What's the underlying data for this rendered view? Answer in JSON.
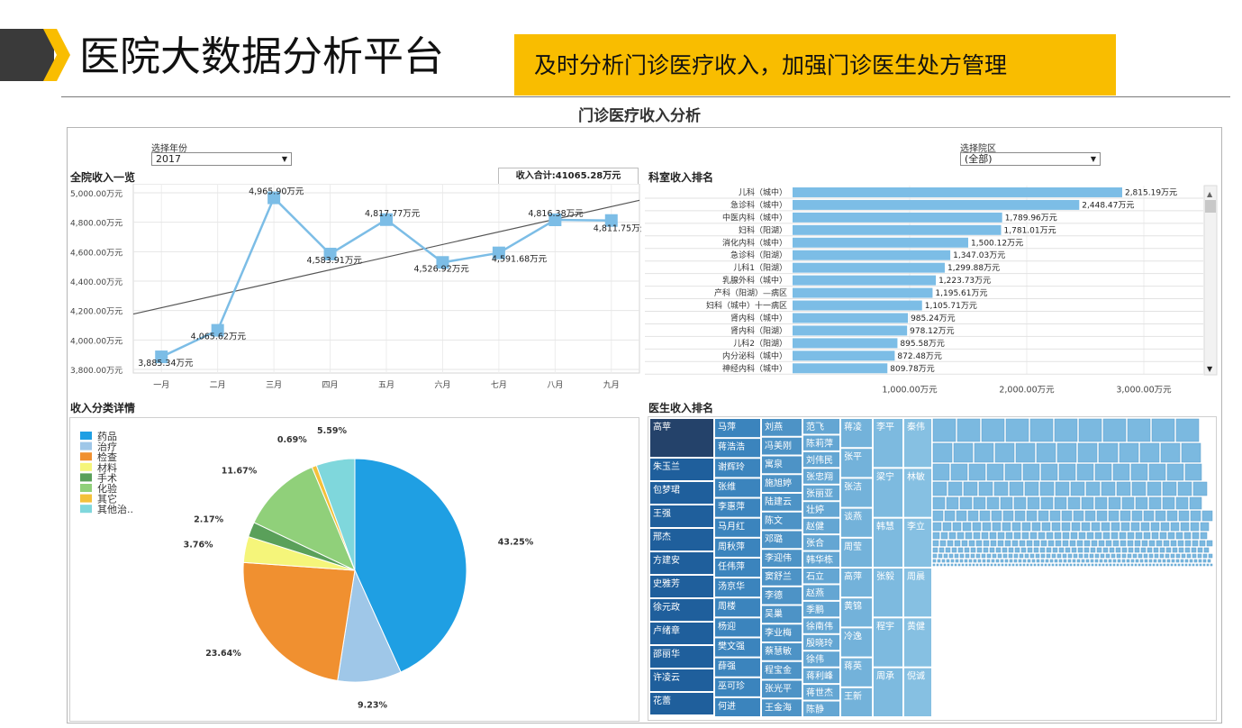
{
  "header": {
    "title": "医院大数据分析平台",
    "banner": "及时分析门诊医疗收入，加强门诊医生处方管理",
    "bar_color": "#3a3a3a",
    "chevron_color": "#f9bd00",
    "banner_color": "#f9bd00"
  },
  "dashboard": {
    "title": "门诊医疗收入分析",
    "year_filter": {
      "label": "选择年份",
      "value": "2017"
    },
    "district_filter": {
      "label": "选择院区",
      "value": "(全部)"
    },
    "total_label": "收入合计:41065.28万元",
    "sections": {
      "hospital": "全院收入一览",
      "dept": "科室收入排名",
      "category": "收入分类详情",
      "doctor": "医生收入排名"
    },
    "doctor_names": [
      [
        "高苹",
        "朱玉兰",
        "包梦珺",
        "王强",
        "邢杰",
        "方建安",
        "史雅芳",
        "徐元政",
        "卢绪章",
        "邵丽华",
        "许凌云",
        "花蕾"
      ],
      [
        "马萍",
        "蒋浩浩",
        "谢辉玲",
        "张维",
        "李惠萍",
        "马月红",
        "周秋萍",
        "任伟萍",
        "汤京华",
        "周楼",
        "杨迎",
        "樊文强",
        "薛强",
        "巫可珍",
        "何进"
      ],
      [
        "刘燕",
        "冯美刚",
        "寓泉",
        "施旭婷",
        "陆建云",
        "陈文",
        "邓璐",
        "李迎伟",
        "窦舒兰",
        "李德",
        "吴巢",
        "李业梅",
        "蔡慧敏",
        "程宝金",
        "张光平",
        "王金海"
      ],
      [
        "范飞",
        "陈莉萍",
        "刘伟民",
        "张忠翔",
        "张丽亚",
        "壮婷",
        "赵健",
        "张合",
        "韩华栋",
        "石立",
        "赵燕",
        "季鹏",
        "徐南伟",
        "殷晓玲",
        "徐伟",
        "蒋利峰",
        "蒋世杰",
        "陈静"
      ],
      [
        "蒋凌",
        "张平",
        "张洁",
        "谈燕",
        "周莹",
        "高萍",
        "黄锦",
        "冷逸",
        "蒋英",
        "王新"
      ],
      [
        "李平",
        "梁宁",
        "韩慧",
        "张毅",
        "程宇",
        "周承"
      ],
      [
        "秦伟",
        "林敏",
        "李立",
        "周晨",
        "黄健",
        "倪诚"
      ]
    ]
  },
  "chart_data": [
    {
      "type": "line",
      "title": "全院收入一览",
      "categories": [
        "一月",
        "二月",
        "三月",
        "四月",
        "五月",
        "六月",
        "七月",
        "八月",
        "九月"
      ],
      "values": [
        3885.34,
        4065.62,
        4965.9,
        4583.91,
        4817.77,
        4526.92,
        4591.68,
        4816.38,
        4811.75
      ],
      "data_labels": [
        "3,885.34万元",
        "4,065.62万元",
        "4,965.90万元",
        "4,583.91万元",
        "4,817.77万元",
        "4,526.92万元",
        "4,591.68万元",
        "4,816.38万元",
        "4,811.75万元"
      ],
      "y_ticks": [
        "3,800.00万元",
        "4,000.00万元",
        "4,200.00万元",
        "4,400.00万元",
        "4,600.00万元",
        "4,800.00万元",
        "5,000.00万元"
      ],
      "ylim": [
        3800,
        5000
      ],
      "trend_line": true,
      "color": "#7cbde6"
    },
    {
      "type": "bar",
      "orientation": "horizontal",
      "title": "科室收入排名",
      "categories": [
        "儿科（城中）",
        "急诊科（城中）",
        "中医内科（城中）",
        "妇科（阳湖）",
        "消化内科（城中）",
        "急诊科（阳湖）",
        "儿科1（阳湖）",
        "乳腺外科（城中）",
        "产科（阳湖）—病区",
        "妇科（城中）十一病区",
        "肾内科（城中）",
        "肾内科（阳湖）",
        "儿科2（阳湖）",
        "内分泌科（城中）",
        "神经内科（城中）"
      ],
      "values": [
        2815.19,
        2448.47,
        1789.96,
        1781.01,
        1500.12,
        1347.03,
        1299.88,
        1223.73,
        1195.61,
        1105.71,
        985.24,
        978.12,
        895.58,
        872.48,
        809.78
      ],
      "data_labels": [
        "2,815.19万元",
        "2,448.47万元",
        "1,789.96万元",
        "1,781.01万元",
        "1,500.12万元",
        "1,347.03万元",
        "1,299.88万元",
        "1,223.73万元",
        "1,195.61万元",
        "1,105.71万元",
        "985.24万元",
        "978.12万元",
        "895.58万元",
        "872.48万元",
        "809.78万元"
      ],
      "x_ticks": [
        "1,000.00万元",
        "2,000.00万元",
        "3,000.00万元"
      ],
      "x_tick_values": [
        1000,
        2000,
        3000
      ],
      "color": "#7cbde6"
    },
    {
      "type": "pie",
      "title": "收入分类详情",
      "legend_position": "top-left",
      "labels": [
        "药品",
        "治疗",
        "检查",
        "材料",
        "手术",
        "化验",
        "其它",
        "其他治.."
      ],
      "values": [
        43.25,
        9.23,
        23.64,
        3.76,
        2.17,
        11.67,
        0.69,
        5.59
      ],
      "value_labels": [
        "43.25%",
        "9.23%",
        "23.64%",
        "3.76%",
        "2.17%",
        "11.67%",
        "0.69%",
        "5.59%"
      ],
      "colors": [
        "#1f9fe3",
        "#9fc7e8",
        "#f09030",
        "#f5f57a",
        "#5aa05a",
        "#90d07a",
        "#f4c13a",
        "#7fd7dc"
      ]
    }
  ]
}
